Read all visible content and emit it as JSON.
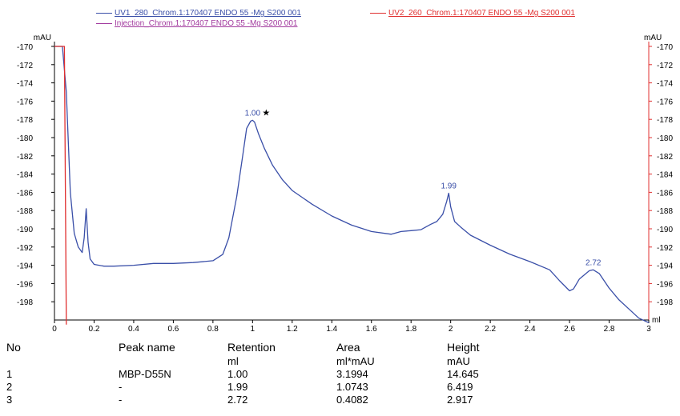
{
  "chart_data": {
    "type": "line",
    "title": "",
    "xlabel": "ml",
    "ylabel": "mAU",
    "ylabel_right": "mAU",
    "xlim": [
      0,
      3
    ],
    "ylim": [
      -170,
      -200
    ],
    "x_ticks": [
      "0",
      "0.2",
      "0.4",
      "0.6",
      "0.8",
      "1",
      "1.2",
      "1.4",
      "1.6",
      "1.8",
      "2",
      "2.2",
      "2.4",
      "2.6",
      "2.8",
      "3"
    ],
    "y_ticks": [
      "-170",
      "-172",
      "-174",
      "-176",
      "-178",
      "-180",
      "-182",
      "-184",
      "-186",
      "-188",
      "-190",
      "-192",
      "-194",
      "-196",
      "-198"
    ],
    "grid": false,
    "legend_position": "top",
    "series": [
      {
        "name": "UV1_280_Chrom.1:170407 ENDO 55 -Mg S200 001",
        "color": "#3a4fa8",
        "x": [
          0.0,
          0.02,
          0.04,
          0.06,
          0.08,
          0.1,
          0.12,
          0.14,
          0.15,
          0.16,
          0.17,
          0.18,
          0.2,
          0.25,
          0.3,
          0.4,
          0.5,
          0.6,
          0.7,
          0.8,
          0.85,
          0.88,
          0.92,
          0.95,
          0.97,
          0.99,
          1.0,
          1.01,
          1.03,
          1.06,
          1.1,
          1.15,
          1.2,
          1.3,
          1.4,
          1.5,
          1.6,
          1.7,
          1.75,
          1.8,
          1.85,
          1.9,
          1.93,
          1.96,
          1.98,
          1.99,
          2.0,
          2.02,
          2.05,
          2.1,
          2.2,
          2.3,
          2.4,
          2.5,
          2.55,
          2.6,
          2.62,
          2.65,
          2.7,
          2.72,
          2.75,
          2.8,
          2.85,
          2.9,
          2.95,
          3.0
        ],
        "y": [
          -170,
          -170,
          -170,
          -175,
          -186,
          -190.5,
          -192,
          -192.6,
          -191,
          -187.8,
          -191.5,
          -193.3,
          -193.9,
          -194.1,
          -194.1,
          -194,
          -193.8,
          -193.8,
          -193.7,
          -193.5,
          -192.8,
          -191,
          -186.5,
          -182,
          -179,
          -178.2,
          -178.1,
          -178.3,
          -179.6,
          -181.2,
          -183,
          -184.6,
          -185.8,
          -187.3,
          -188.6,
          -189.6,
          -190.3,
          -190.6,
          -190.3,
          -190.2,
          -190.1,
          -189.5,
          -189.2,
          -188.4,
          -187,
          -186.1,
          -187.6,
          -189.2,
          -189.8,
          -190.7,
          -191.8,
          -192.8,
          -193.6,
          -194.5,
          -195.7,
          -196.8,
          -196.6,
          -195.5,
          -194.6,
          -194.5,
          -194.9,
          -196.5,
          -197.8,
          -198.8,
          -199.8,
          -200.3
        ]
      },
      {
        "name": "UV2_260_Chrom.1:170407 ENDO 55 -Mg S200 001",
        "color": "#e03030",
        "x": [
          0.0,
          0.05,
          0.06
        ],
        "y": [
          -170,
          -170,
          -200.5
        ]
      },
      {
        "name": "Injection_Chrom.1:170407 ENDO 55 -Mg S200 001",
        "color": "#a23a9e",
        "x": [],
        "y": []
      }
    ],
    "annotations": [
      {
        "x": 1.0,
        "y": -178.1,
        "text": "1.00",
        "marker": "★"
      },
      {
        "x": 1.99,
        "y": -186.1,
        "text": "1.99",
        "marker": ""
      },
      {
        "x": 2.72,
        "y": -194.5,
        "text": "2.72",
        "marker": ""
      }
    ]
  },
  "peak_table": {
    "headers": [
      "No",
      "Peak name",
      "Retention",
      "Area",
      "Height"
    ],
    "units": [
      "",
      "",
      "ml",
      "ml*mAU",
      "mAU"
    ],
    "rows": [
      [
        "1",
        "MBP-D55N",
        "1.00",
        "3.1994",
        "14.645"
      ],
      [
        "2",
        "-",
        "1.99",
        "1.0743",
        "6.419"
      ],
      [
        "3",
        "-",
        "2.72",
        "0.4082",
        "2.917"
      ]
    ]
  }
}
